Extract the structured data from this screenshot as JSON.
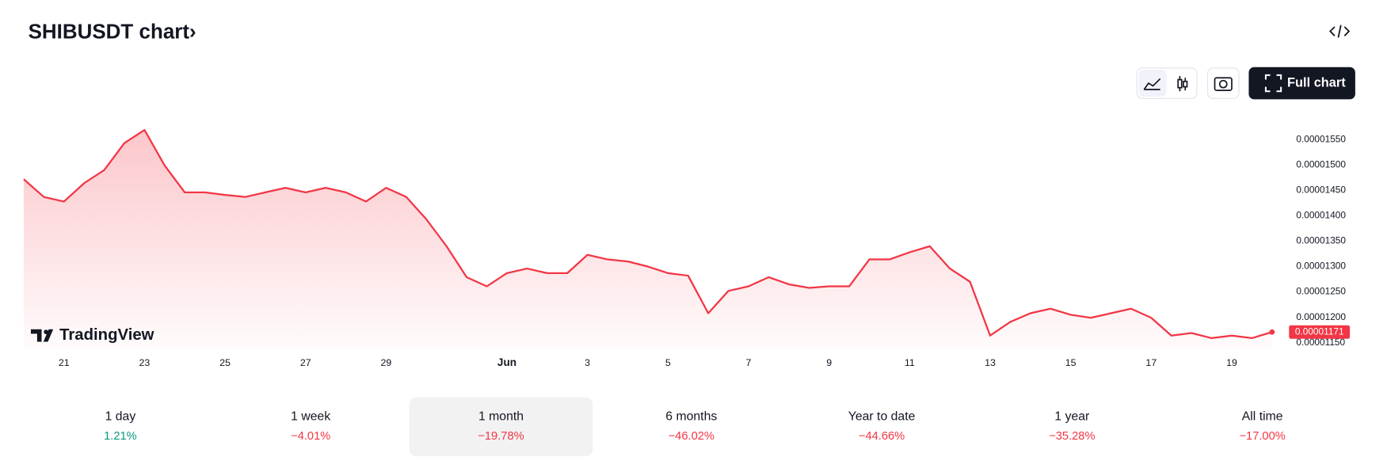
{
  "header": {
    "title": "SHIBUSDT chart›",
    "full_chart_button": "Full chart"
  },
  "logo": "TradingView",
  "chart_data": {
    "type": "line",
    "color": "#f23645",
    "categories": [
      null,
      null,
      "21",
      null,
      null,
      null,
      "23",
      null,
      null,
      null,
      "25",
      null,
      null,
      null,
      "27",
      null,
      null,
      null,
      "29",
      null,
      null,
      null,
      null,
      null,
      "Jun",
      null,
      null,
      null,
      "3",
      null,
      null,
      null,
      "5",
      null,
      null,
      null,
      "7",
      null,
      null,
      null,
      "9",
      null,
      null,
      null,
      "11",
      null,
      null,
      null,
      "13",
      null,
      null,
      null,
      "15",
      null,
      null,
      null,
      "17",
      null,
      null,
      null,
      "19",
      null,
      null
    ],
    "values": [
      1.472e-05,
      1.437e-05,
      1.428e-05,
      1.464e-05,
      1.49e-05,
      1.543e-05,
      1.569e-05,
      1.499e-05,
      1.446e-05,
      1.446e-05,
      1.441e-05,
      1.437e-05,
      1.446e-05,
      1.455e-05,
      1.446e-05,
      1.455e-05,
      1.446e-05,
      1.428e-05,
      1.455e-05,
      1.437e-05,
      1.393e-05,
      1.34e-05,
      1.279e-05,
      1.261e-05,
      1.287e-05,
      1.296e-05,
      1.287e-05,
      1.287e-05,
      1.323e-05,
      1.314e-05,
      1.31e-05,
      1.3e-05,
      1.287e-05,
      1.282e-05,
      1.208e-05,
      1.252e-05,
      1.261e-05,
      1.279e-05,
      1.265e-05,
      1.258e-05,
      1.261e-05,
      1.261e-05,
      1.314e-05,
      1.314e-05,
      1.328e-05,
      1.34e-05,
      1.296e-05,
      1.27e-05,
      1.164e-05,
      1.191e-05,
      1.208e-05,
      1.217e-05,
      1.205e-05,
      1.199e-05,
      1.208e-05,
      1.217e-05,
      1.199e-05,
      1.164e-05,
      1.169e-05,
      1.159e-05,
      1.164e-05,
      1.159e-05,
      1.171e-05
    ],
    "ylim": [
      1.14e-05,
      1.6e-05
    ],
    "yticks": [
      {
        "value": 1.15e-05,
        "label": "0.00001150"
      },
      {
        "value": 1.2e-05,
        "label": "0.00001200"
      },
      {
        "value": 1.25e-05,
        "label": "0.00001250"
      },
      {
        "value": 1.3e-05,
        "label": "0.00001300"
      },
      {
        "value": 1.35e-05,
        "label": "0.00001350"
      },
      {
        "value": 1.4e-05,
        "label": "0.00001400"
      },
      {
        "value": 1.45e-05,
        "label": "0.00001450"
      },
      {
        "value": 1.5e-05,
        "label": "0.00001500"
      },
      {
        "value": 1.55e-05,
        "label": "0.00001550"
      }
    ],
    "grid": false
  },
  "periods": [
    {
      "label": "1 day",
      "change": "1.21%",
      "color": "#089981"
    },
    {
      "label": "1 week",
      "change": "−4.01%",
      "color": "#f23645"
    },
    {
      "label": "1 month",
      "change": "−19.78%",
      "color": "#f23645"
    },
    {
      "label": "6 months",
      "change": "−46.02%",
      "color": "#f23645"
    },
    {
      "label": "Year to date",
      "change": "−44.66%",
      "color": "#f23645"
    },
    {
      "label": "1 year",
      "change": "−35.28%",
      "color": "#f23645"
    },
    {
      "label": "All time",
      "change": "−17.00%",
      "color": "#f23645"
    }
  ],
  "selected_period": 2
}
